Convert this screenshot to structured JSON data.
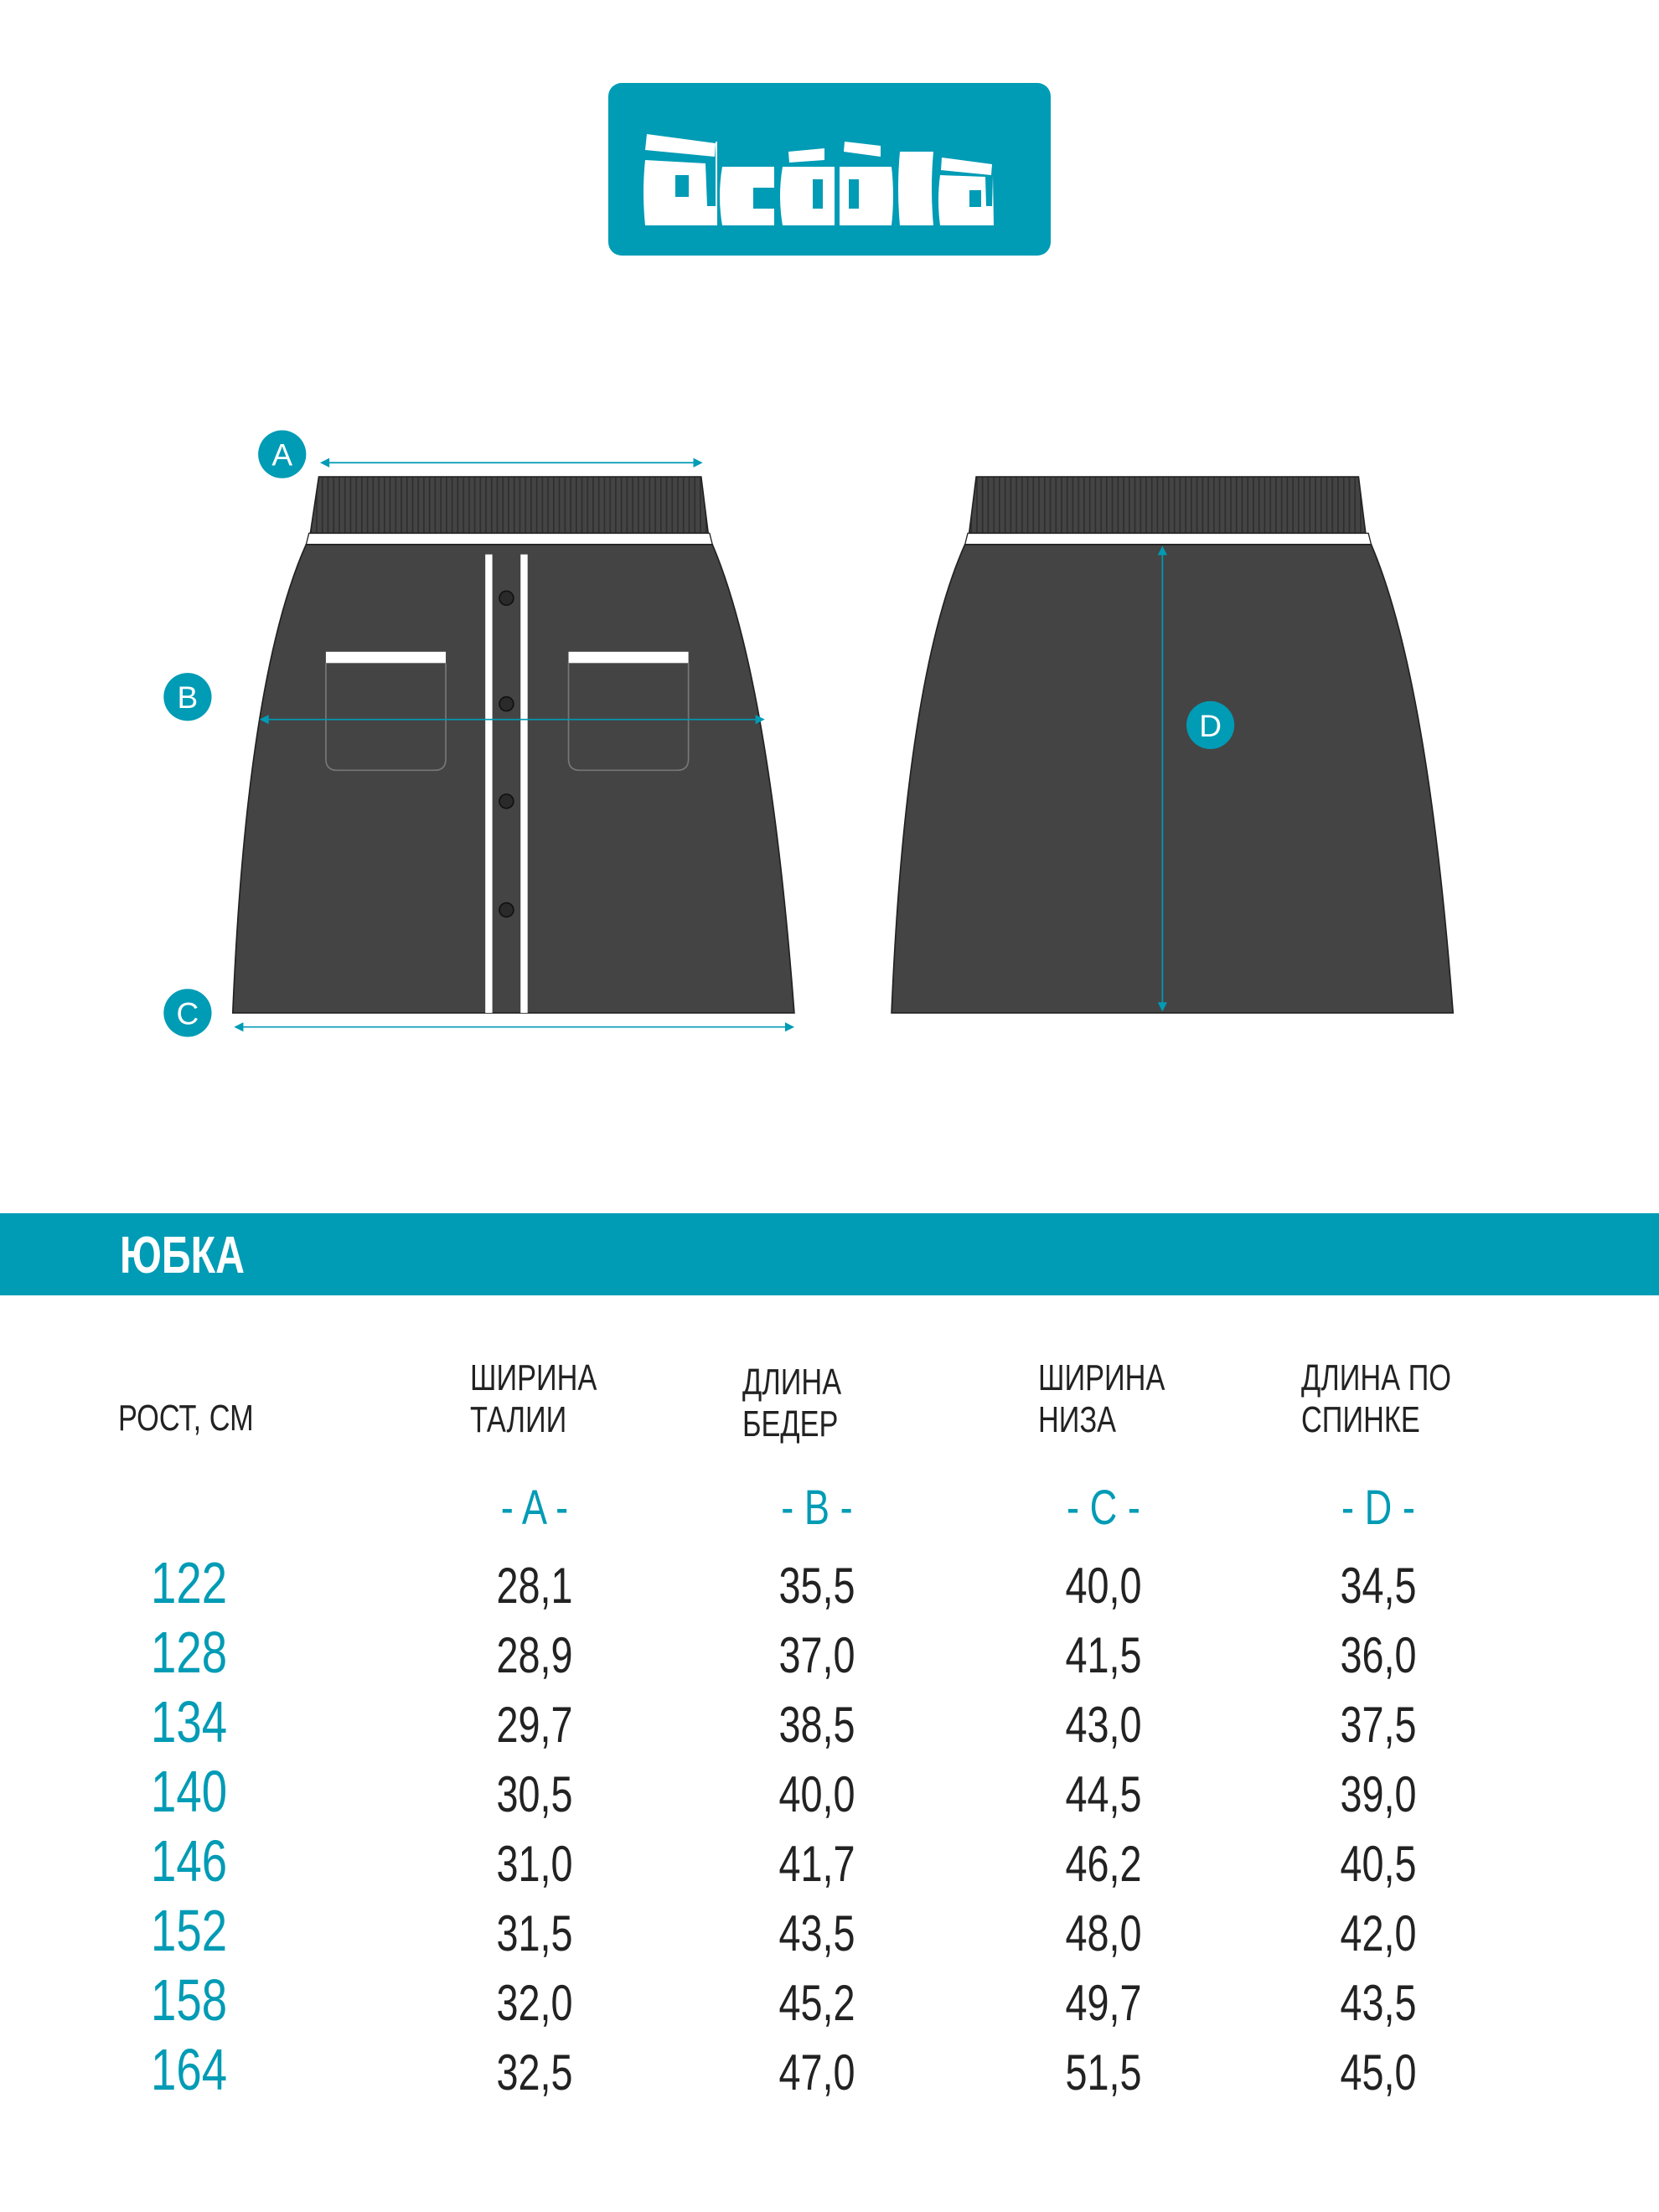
{
  "brand": {
    "name": "acoola",
    "color": "#009bb5"
  },
  "diagram": {
    "labels": [
      "A",
      "B",
      "C",
      "D"
    ],
    "garment_color": "#444444"
  },
  "section_title": "ЮБКА",
  "table": {
    "row_header": "РОСТ, СМ",
    "columns": [
      {
        "line1": "ШИРИНА",
        "line2": "ТАЛИИ",
        "letter": "- A -"
      },
      {
        "line1": "ДЛИНА",
        "line2": "БЕДЕР",
        "letter": "- B -"
      },
      {
        "line1": "ШИРИНА",
        "line2": "НИЗА",
        "letter": "- C -"
      },
      {
        "line1": "ДЛИНА ПО",
        "line2": "СПИНКЕ",
        "letter": "- D -"
      }
    ],
    "rows": [
      {
        "height": "122",
        "values": [
          "28,1",
          "35,5",
          "40,0",
          "34,5"
        ]
      },
      {
        "height": "128",
        "values": [
          "28,9",
          "37,0",
          "41,5",
          "36,0"
        ]
      },
      {
        "height": "134",
        "values": [
          "29,7",
          "38,5",
          "43,0",
          "37,5"
        ]
      },
      {
        "height": "140",
        "values": [
          "30,5",
          "40,0",
          "44,5",
          "39,0"
        ]
      },
      {
        "height": "146",
        "values": [
          "31,0",
          "41,7",
          "46,2",
          "40,5"
        ]
      },
      {
        "height": "152",
        "values": [
          "31,5",
          "43,5",
          "48,0",
          "42,0"
        ]
      },
      {
        "height": "158",
        "values": [
          "32,0",
          "45,2",
          "49,7",
          "43,5"
        ]
      },
      {
        "height": "164",
        "values": [
          "32,5",
          "47,0",
          "51,5",
          "45,0"
        ]
      }
    ]
  }
}
